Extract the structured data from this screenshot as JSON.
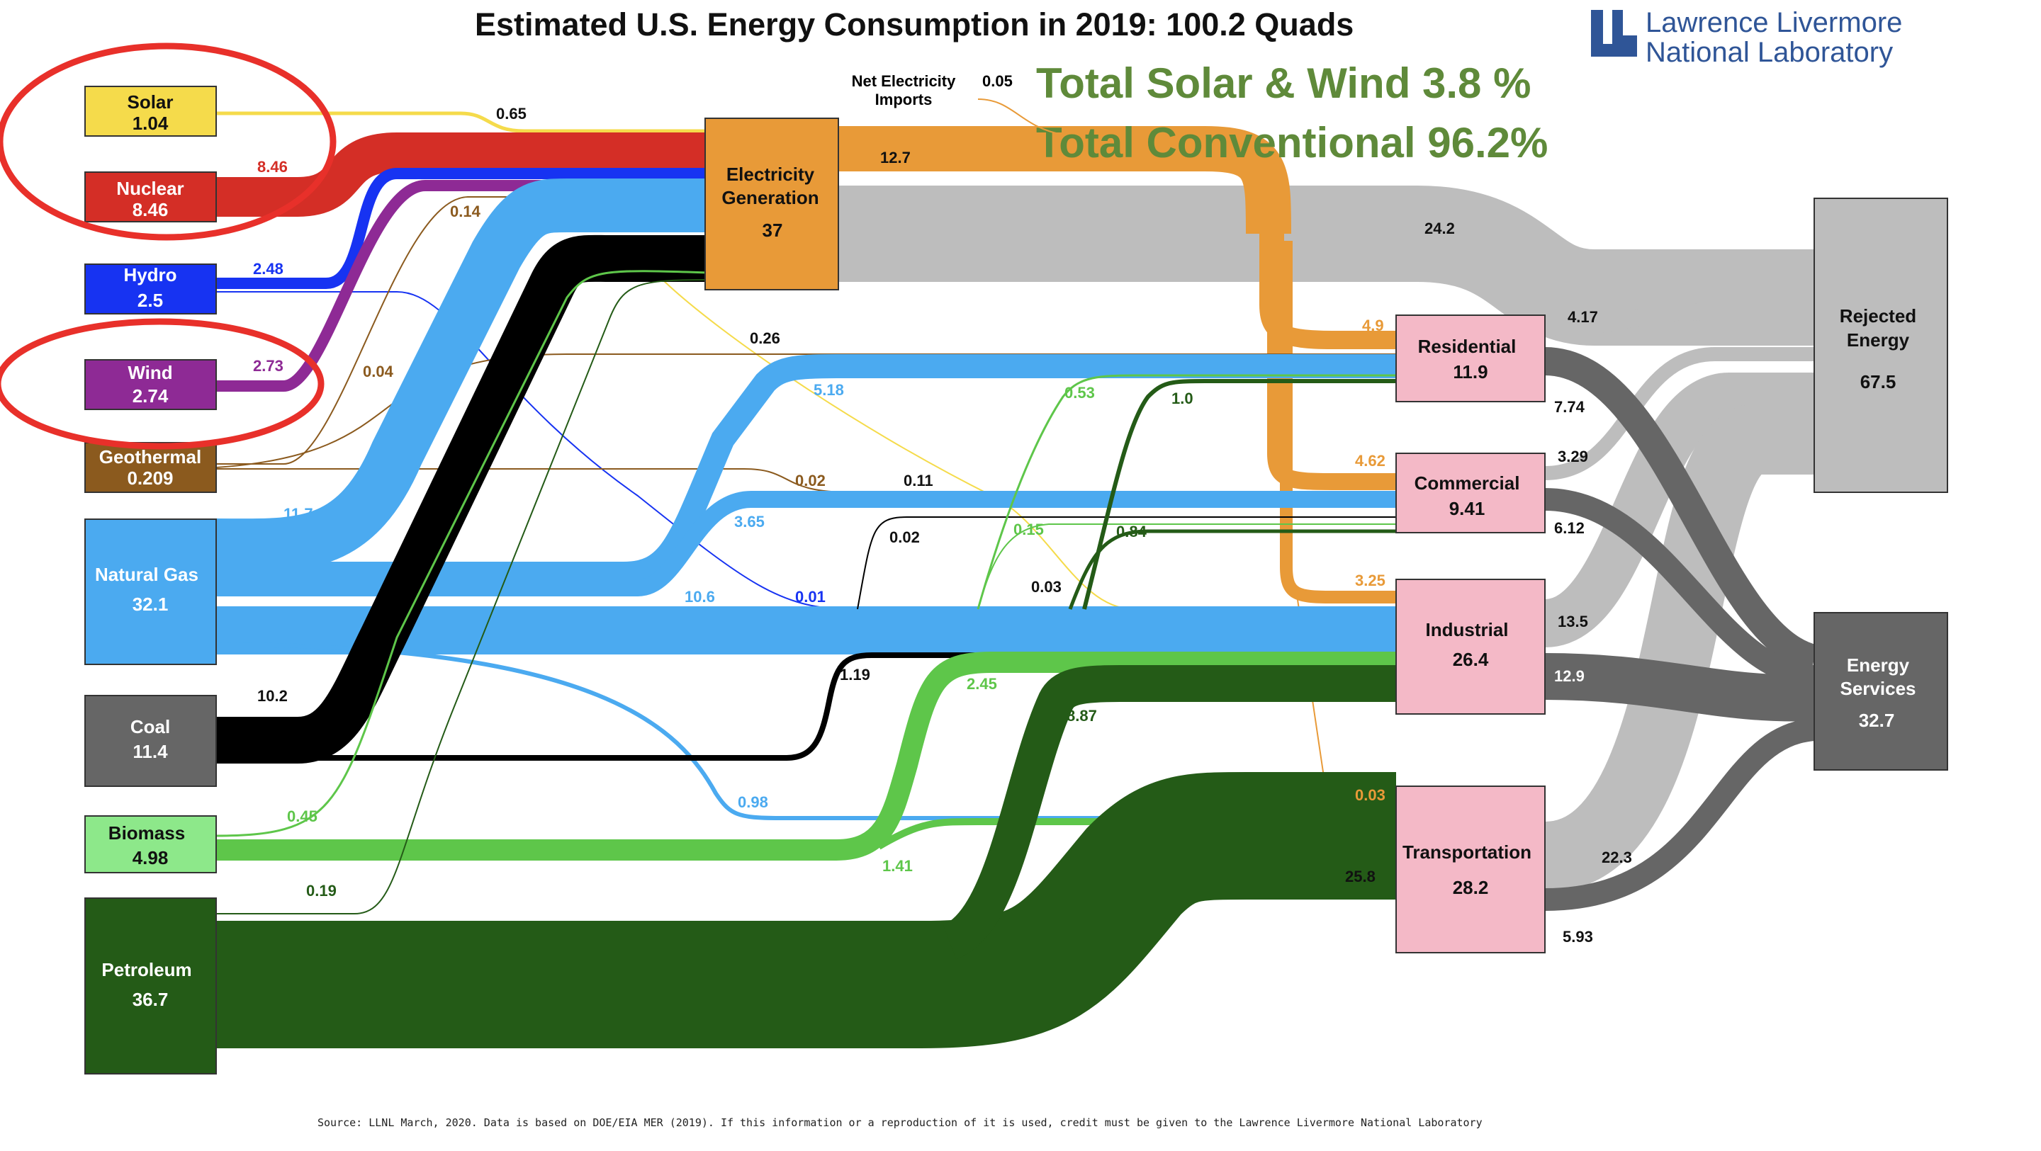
{
  "title": "Estimated U.S. Energy Consumption in 2019: 100.2 Quads",
  "logo": {
    "line1": "Lawrence Livermore",
    "line2": "National Laboratory",
    "color": "#2f5597"
  },
  "headline": {
    "line1": "Total Solar & Wind 3.8 %",
    "line2": "Total Conventional 96.2%",
    "color": "#5f8a3a"
  },
  "net_imports": {
    "label_line1": "Net Electricity",
    "label_line2": "Imports",
    "value": "0.05"
  },
  "source_note": "Source: LLNL March, 2020. Data is based on DOE/EIA MER (2019). If this information or a reproduction of it is used, credit must be given to the Lawrence Livermore National Laboratory",
  "sources": [
    {
      "id": "solar",
      "name": "Solar",
      "value": "1.04",
      "color": "#f5db4b",
      "text": "#111111"
    },
    {
      "id": "nuclear",
      "name": "Nuclear",
      "value": "8.46",
      "color": "#d42e26",
      "text": "#ffffff"
    },
    {
      "id": "hydro",
      "name": "Hydro",
      "value": "2.5",
      "color": "#1733f2",
      "text": "#ffffff"
    },
    {
      "id": "wind",
      "name": "Wind",
      "value": "2.74",
      "color": "#8e2a95",
      "text": "#ffffff"
    },
    {
      "id": "geothermal",
      "name": "Geothermal",
      "value": "0.209",
      "color": "#8b5a1e",
      "text": "#ffffff"
    },
    {
      "id": "gas",
      "name": "Natural Gas",
      "value": "32.1",
      "color": "#4baaf0",
      "text": "#ffffff"
    },
    {
      "id": "coal",
      "name": "Coal",
      "value": "11.4",
      "color": "#666666",
      "text": "#ffffff"
    },
    {
      "id": "biomass",
      "name": "Biomass",
      "value": "4.98",
      "color": "#8de88a",
      "text": "#111111"
    },
    {
      "id": "petroleum",
      "name": "Petroleum",
      "value": "36.7",
      "color": "#245b17",
      "text": "#ffffff"
    }
  ],
  "electricity": {
    "name_line1": "Electricity",
    "name_line2": "Generation",
    "value": "37",
    "color": "#e89a38"
  },
  "sectors": [
    {
      "id": "residential",
      "name": "Residential",
      "value": "11.9",
      "color": "#f4b9c7"
    },
    {
      "id": "commercial",
      "name": "Commercial",
      "value": "9.41",
      "color": "#f4b9c7"
    },
    {
      "id": "industrial",
      "name": "Industrial",
      "value": "26.4",
      "color": "#f4b9c7"
    },
    {
      "id": "transportation",
      "name": "Transportation",
      "value": "28.2",
      "color": "#f4b9c7"
    }
  ],
  "rejected": {
    "name_line1": "Rejected",
    "name_line2": "Energy",
    "value": "67.5",
    "color": "#bdbdbd"
  },
  "services": {
    "name_line1": "Energy",
    "name_line2": "Services",
    "value": "32.7",
    "color": "#666666"
  },
  "flows": [
    {
      "from": "Solar",
      "to": "Electricity Generation",
      "value": "0.65",
      "color": "#f5db4b"
    },
    {
      "from": "Solar",
      "to": "Residential",
      "value": "0.26",
      "color": "#f5db4b"
    },
    {
      "from": "Solar",
      "to": "Commercial",
      "value": "0.11",
      "color": "#f5db4b"
    },
    {
      "from": "Solar",
      "to": "Industrial",
      "value": "0.03",
      "color": "#f5db4b"
    },
    {
      "from": "Nuclear",
      "to": "Electricity Generation",
      "value": "8.46",
      "color": "#d42e26"
    },
    {
      "from": "Hydro",
      "to": "Electricity Generation",
      "value": "2.48",
      "color": "#1733f2"
    },
    {
      "from": "Hydro",
      "to": "Industrial",
      "value": "0.01",
      "color": "#1733f2"
    },
    {
      "from": "Wind",
      "to": "Electricity Generation",
      "value": "2.73",
      "color": "#8e2a95"
    },
    {
      "from": "Geothermal",
      "to": "Electricity Generation",
      "value": "0.14",
      "color": "#8b5a1e"
    },
    {
      "from": "Geothermal",
      "to": "Residential",
      "value": "0.04",
      "color": "#8b5a1e"
    },
    {
      "from": "Geothermal",
      "to": "Commercial",
      "value": "0.02",
      "color": "#8b5a1e"
    },
    {
      "from": "Natural Gas",
      "to": "Electricity Generation",
      "value": "11.7",
      "color": "#4baaf0"
    },
    {
      "from": "Natural Gas",
      "to": "Residential",
      "value": "5.18",
      "color": "#4baaf0"
    },
    {
      "from": "Natural Gas",
      "to": "Commercial",
      "value": "3.65",
      "color": "#4baaf0"
    },
    {
      "from": "Natural Gas",
      "to": "Industrial",
      "value": "10.6",
      "color": "#4baaf0"
    },
    {
      "from": "Natural Gas",
      "to": "Transportation",
      "value": "0.98",
      "color": "#4baaf0"
    },
    {
      "from": "Coal",
      "to": "Electricity Generation",
      "value": "10.2",
      "color": "#000000"
    },
    {
      "from": "Coal",
      "to": "Commercial",
      "value": "0.02",
      "color": "#000000"
    },
    {
      "from": "Coal",
      "to": "Industrial",
      "value": "1.19",
      "color": "#000000"
    },
    {
      "from": "Biomass",
      "to": "Electricity Generation",
      "value": "0.45",
      "color": "#5ec64a"
    },
    {
      "from": "Biomass",
      "to": "Residential",
      "value": "0.53",
      "color": "#5ec64a"
    },
    {
      "from": "Biomass",
      "to": "Commercial",
      "value": "0.15",
      "color": "#5ec64a"
    },
    {
      "from": "Biomass",
      "to": "Industrial",
      "value": "2.45",
      "color": "#5ec64a"
    },
    {
      "from": "Biomass",
      "to": "Transportation",
      "value": "1.41",
      "color": "#5ec64a"
    },
    {
      "from": "Petroleum",
      "to": "Electricity Generation",
      "value": "0.19",
      "color": "#245b17"
    },
    {
      "from": "Petroleum",
      "to": "Residential",
      "value": "1.0",
      "color": "#245b17"
    },
    {
      "from": "Petroleum",
      "to": "Commercial",
      "value": "0.84",
      "color": "#245b17"
    },
    {
      "from": "Petroleum",
      "to": "Industrial",
      "value": "8.87",
      "color": "#245b17"
    },
    {
      "from": "Petroleum",
      "to": "Transportation",
      "value": "25.8",
      "color": "#245b17"
    },
    {
      "from": "Electricity Generation",
      "to": "Rejected Energy",
      "value": "24.2",
      "color": "#bdbdbd"
    },
    {
      "from": "Electricity Generation",
      "to": "Residential",
      "value": "4.9",
      "color": "#e89a38"
    },
    {
      "from": "Electricity Generation",
      "to": "Commercial",
      "value": "4.62",
      "color": "#e89a38"
    },
    {
      "from": "Electricity Generation",
      "to": "Industrial",
      "value": "3.25",
      "color": "#e89a38"
    },
    {
      "from": "Electricity Generation",
      "to": "Transportation",
      "value": "0.03",
      "color": "#e89a38"
    },
    {
      "from": "Electricity Generation (total)",
      "to": "",
      "value": "12.7",
      "color": "#e89a38"
    },
    {
      "from": "Residential",
      "to": "Rejected Energy",
      "value": "4.17",
      "color": "#bdbdbd"
    },
    {
      "from": "Residential",
      "to": "Energy Services",
      "value": "7.74",
      "color": "#666666"
    },
    {
      "from": "Commercial",
      "to": "Rejected Energy",
      "value": "3.29",
      "color": "#bdbdbd"
    },
    {
      "from": "Commercial",
      "to": "Energy Services",
      "value": "6.12",
      "color": "#666666"
    },
    {
      "from": "Industrial",
      "to": "Rejected Energy",
      "value": "13.5",
      "color": "#bdbdbd"
    },
    {
      "from": "Industrial",
      "to": "Energy Services",
      "value": "12.9",
      "color": "#666666"
    },
    {
      "from": "Transportation",
      "to": "Rejected Energy",
      "value": "22.3",
      "color": "#bdbdbd"
    },
    {
      "from": "Transportation",
      "to": "Energy Services",
      "value": "5.93",
      "color": "#666666"
    }
  ],
  "annotations": {
    "circle_color": "#e8302a"
  }
}
